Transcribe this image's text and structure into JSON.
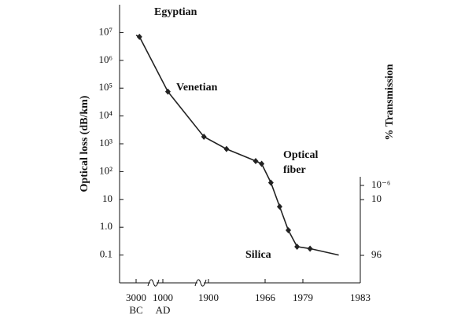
{
  "chart_data": {
    "type": "line",
    "ylabel": "Optical loss (dB/km)",
    "y2label": "% Transmission",
    "yscale": "log",
    "ylim": [
      0.01,
      100000000
    ],
    "yticks": [
      {
        "value": 10000000,
        "label": "10⁷"
      },
      {
        "value": 1000000,
        "label": "10⁶"
      },
      {
        "value": 100000,
        "label": "10⁵"
      },
      {
        "value": 10000,
        "label": "10⁴"
      },
      {
        "value": 1000,
        "label": "10³"
      },
      {
        "value": 100,
        "label": "10²"
      },
      10,
      {
        "value": 1,
        "label": "1.0"
      },
      0.1
    ],
    "y2ticks": [
      {
        "value": 1e-06,
        "label": "10⁻⁶"
      },
      10,
      96
    ],
    "xticks": [
      {
        "value": -3000,
        "label": [
          "3000",
          "BC"
        ]
      },
      {
        "value": 1000,
        "label": [
          "1000",
          "AD"
        ]
      },
      1900,
      1966,
      1979,
      1983
    ],
    "x": [
      -3000,
      -2500,
      1100,
      1810,
      1921,
      1955,
      1962,
      1968,
      1971,
      1974,
      1977,
      1979.5,
      1981.5
    ],
    "series": [
      {
        "color": "#222",
        "values": [
          8000000,
          7000000,
          75000,
          1800,
          650,
          240,
          190,
          40,
          5.5,
          0.78,
          0.2,
          0.17,
          0.1
        ],
        "markers": [
          false,
          true,
          true,
          true,
          true,
          true,
          true,
          true,
          true,
          true,
          true,
          true,
          false
        ]
      }
    ],
    "annotations": [
      "Egyptian",
      "Venetian",
      "Optical",
      "fiber",
      "Silica"
    ]
  }
}
